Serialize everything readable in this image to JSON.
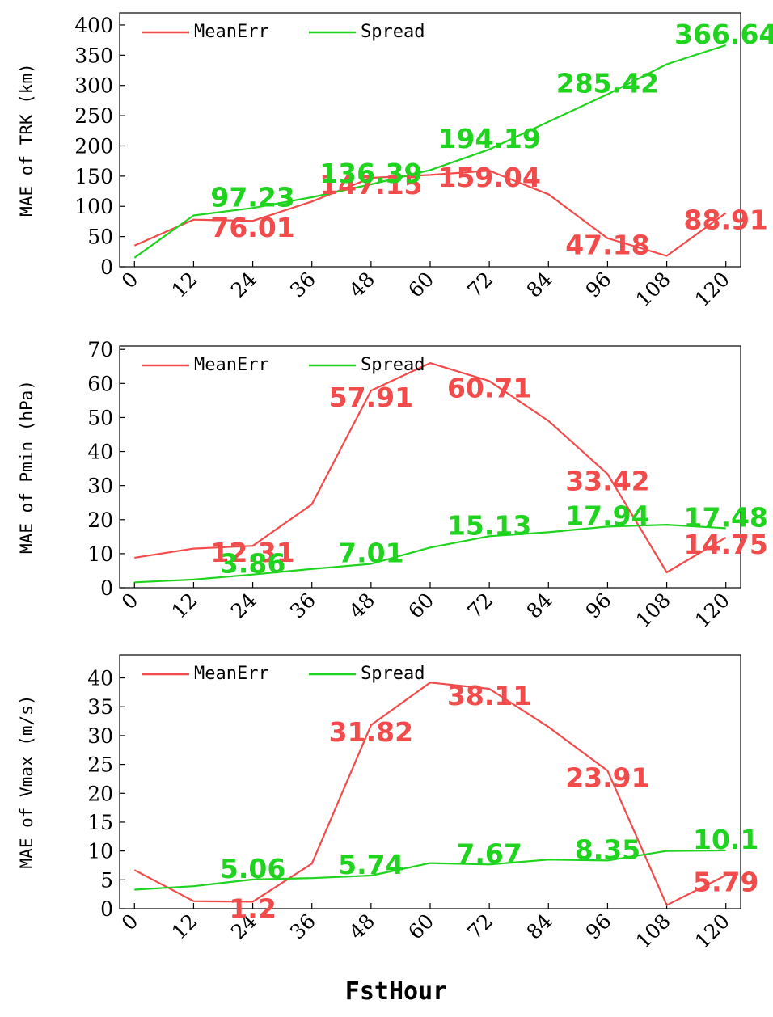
{
  "colors": {
    "mean_err": "#f24b4b",
    "spread": "#1fd31f"
  },
  "x_title": "FstHour",
  "chart_data": [
    {
      "type": "line",
      "ylabel": "MAE of TRK (km)",
      "x": [
        0,
        12,
        24,
        36,
        48,
        60,
        72,
        84,
        96,
        108,
        120
      ],
      "xticks": [
        "0",
        "12",
        "24",
        "36",
        "48",
        "60",
        "72",
        "84",
        "96",
        "108",
        "120"
      ],
      "xlim": [
        -3,
        123
      ],
      "ylim": [
        0,
        420
      ],
      "yticks": [
        0,
        50,
        100,
        150,
        200,
        250,
        300,
        350,
        400
      ],
      "legend": "top-left",
      "grid": false,
      "series": [
        {
          "name": "MeanErr",
          "color": "#f24b4b",
          "values": [
            35,
            78,
            76.01,
            108,
            147.15,
            152,
            159.04,
            120,
            47.18,
            18,
            88.91
          ]
        },
        {
          "name": "Spread",
          "color": "#1fd31f",
          "values": [
            15,
            85,
            97.23,
            115,
            136.39,
            160,
            194.19,
            240,
            285.42,
            335,
            366.64
          ]
        }
      ],
      "annotations": [
        {
          "series": "MeanErr",
          "x": 24,
          "text": "76.01"
        },
        {
          "series": "MeanErr",
          "x": 48,
          "text": "147.15"
        },
        {
          "series": "MeanErr",
          "x": 72,
          "text": "159.04"
        },
        {
          "series": "MeanErr",
          "x": 96,
          "text": "47.18"
        },
        {
          "series": "MeanErr",
          "x": 120,
          "text": "88.91"
        },
        {
          "series": "Spread",
          "x": 24,
          "text": "97.23"
        },
        {
          "series": "Spread",
          "x": 48,
          "text": "136.39"
        },
        {
          "series": "Spread",
          "x": 72,
          "text": "194.19"
        },
        {
          "series": "Spread",
          "x": 96,
          "text": "285.42"
        },
        {
          "series": "Spread",
          "x": 120,
          "text": "366.64"
        }
      ]
    },
    {
      "type": "line",
      "ylabel": "MAE of Pmin (hPa)",
      "x": [
        0,
        12,
        24,
        36,
        48,
        60,
        72,
        84,
        96,
        108,
        120
      ],
      "xticks": [
        "0",
        "12",
        "24",
        "36",
        "48",
        "60",
        "72",
        "84",
        "96",
        "108",
        "120"
      ],
      "xlim": [
        -3,
        123
      ],
      "ylim": [
        0,
        71
      ],
      "yticks": [
        0,
        10,
        20,
        30,
        40,
        50,
        60,
        70
      ],
      "legend": "top-left",
      "grid": false,
      "series": [
        {
          "name": "MeanErr",
          "color": "#f24b4b",
          "values": [
            8.8,
            11.5,
            12.31,
            24.5,
            57.91,
            66,
            60.71,
            49,
            33.42,
            4.5,
            14.75
          ]
        },
        {
          "name": "Spread",
          "color": "#1fd31f",
          "values": [
            1.6,
            2.4,
            3.86,
            5.5,
            7.01,
            11.8,
            15.13,
            16.3,
            17.94,
            18.5,
            17.48
          ]
        }
      ],
      "annotations": [
        {
          "series": "MeanErr",
          "x": 24,
          "text": "12.31"
        },
        {
          "series": "MeanErr",
          "x": 48,
          "text": "57.91"
        },
        {
          "series": "MeanErr",
          "x": 72,
          "text": "60.71"
        },
        {
          "series": "MeanErr",
          "x": 96,
          "text": "33.42"
        },
        {
          "series": "MeanErr",
          "x": 120,
          "text": "14.75"
        },
        {
          "series": "Spread",
          "x": 24,
          "text": "3.86"
        },
        {
          "series": "Spread",
          "x": 48,
          "text": "7.01"
        },
        {
          "series": "Spread",
          "x": 72,
          "text": "15.13"
        },
        {
          "series": "Spread",
          "x": 96,
          "text": "17.94"
        },
        {
          "series": "Spread",
          "x": 120,
          "text": "17.48"
        }
      ]
    },
    {
      "type": "line",
      "ylabel": "MAE of Vmax (m/s)",
      "x": [
        0,
        12,
        24,
        36,
        48,
        60,
        72,
        84,
        96,
        108,
        120
      ],
      "xticks": [
        "0",
        "12",
        "24",
        "36",
        "48",
        "60",
        "72",
        "84",
        "96",
        "108",
        "120"
      ],
      "xlim": [
        -3,
        123
      ],
      "ylim": [
        0,
        44
      ],
      "yticks": [
        0,
        5,
        10,
        15,
        20,
        25,
        30,
        35,
        40
      ],
      "legend": "top-left",
      "grid": false,
      "series": [
        {
          "name": "MeanErr",
          "color": "#f24b4b",
          "values": [
            6.7,
            1.3,
            1.2,
            7.8,
            31.82,
            39.2,
            38.11,
            31.5,
            23.91,
            0.6,
            5.79
          ]
        },
        {
          "name": "Spread",
          "color": "#1fd31f",
          "values": [
            3.3,
            3.9,
            5.06,
            5.3,
            5.74,
            7.9,
            7.67,
            8.5,
            8.35,
            10,
            10.1
          ]
        }
      ],
      "annotations": [
        {
          "series": "MeanErr",
          "x": 24,
          "text": "1.2"
        },
        {
          "series": "MeanErr",
          "x": 48,
          "text": "31.82"
        },
        {
          "series": "MeanErr",
          "x": 72,
          "text": "38.11"
        },
        {
          "series": "MeanErr",
          "x": 96,
          "text": "23.91"
        },
        {
          "series": "MeanErr",
          "x": 120,
          "text": "5.79"
        },
        {
          "series": "Spread",
          "x": 24,
          "text": "5.06"
        },
        {
          "series": "Spread",
          "x": 48,
          "text": "5.74"
        },
        {
          "series": "Spread",
          "x": 72,
          "text": "7.67"
        },
        {
          "series": "Spread",
          "x": 96,
          "text": "8.35"
        },
        {
          "series": "Spread",
          "x": 120,
          "text": "10.1"
        }
      ]
    }
  ]
}
